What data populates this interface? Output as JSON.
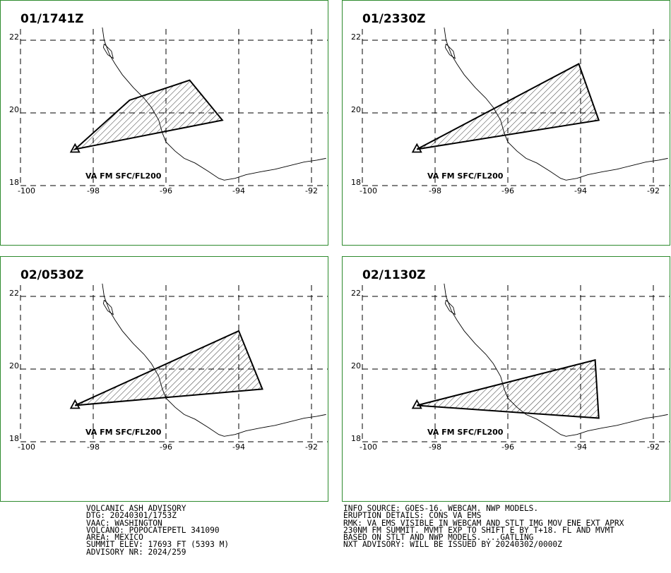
{
  "panels": [
    {
      "title": "01/1741Z",
      "label": "VA FM SFC/FL200",
      "polygon": [
        [
          -98.5,
          19.0
        ],
        [
          -97.0,
          20.35
        ],
        [
          -95.35,
          20.9
        ],
        [
          -94.45,
          19.8
        ]
      ]
    },
    {
      "title": "01/2330Z",
      "label": "VA FM SFC/FL200",
      "polygon": [
        [
          -98.5,
          19.0
        ],
        [
          -94.05,
          21.35
        ],
        [
          -93.5,
          19.8
        ]
      ]
    },
    {
      "title": "02/0530Z",
      "label": "VA FM SFC/FL200",
      "polygon": [
        [
          -98.5,
          19.0
        ],
        [
          -94.0,
          21.05
        ],
        [
          -93.35,
          19.45
        ]
      ]
    },
    {
      "title": "02/1130Z",
      "label": "VA FM SFC/FL200",
      "polygon": [
        [
          -98.5,
          19.0
        ],
        [
          -93.6,
          20.25
        ],
        [
          -93.5,
          18.65
        ]
      ]
    }
  ],
  "axes": {
    "x_ticks": [
      "-100",
      "-98",
      "-96",
      "-94",
      "-92"
    ],
    "y_ticks": [
      "22",
      "20",
      "18"
    ],
    "lon_range": [
      -100,
      -91.4
    ],
    "lat_range": [
      18,
      22.3
    ]
  },
  "volcano": {
    "lon": -98.5,
    "lat": 19.0,
    "symbol": "triangle"
  },
  "advisory_left": [
    "VOLCANIC ASH ADVISORY",
    "DTG: 20240301/1753Z",
    "VAAC: WASHINGTON",
    "VOLCANO: POPOCATEPETL 341090",
    "AREA: MEXICO",
    "SUMMIT ELEV: 17693 FT (5393 M)",
    "ADVISORY NR: 2024/259"
  ],
  "advisory_right": [
    "INFO SOURCE: GOES-16. WEBCAM. NWP MODELS.",
    "ERUPTION DETAILS: CONS VA EMS",
    "RMK: VA EMS VISIBLE IN WEBCAM AND STLT IMG MOV ENE EXT APRX",
    "230NM FM SUMMIT. MVMT EXP TO SHIFT E BY T+18. FL AND MVMT",
    "BASED ON STLT AND NWP MODELS. ...GATLING",
    "NXT ADVISORY: WILL BE ISSUED BY 20240302/0000Z"
  ],
  "colors": {
    "frame": "#2e8b2e",
    "grid": "#000000",
    "polygon": "#000000"
  }
}
